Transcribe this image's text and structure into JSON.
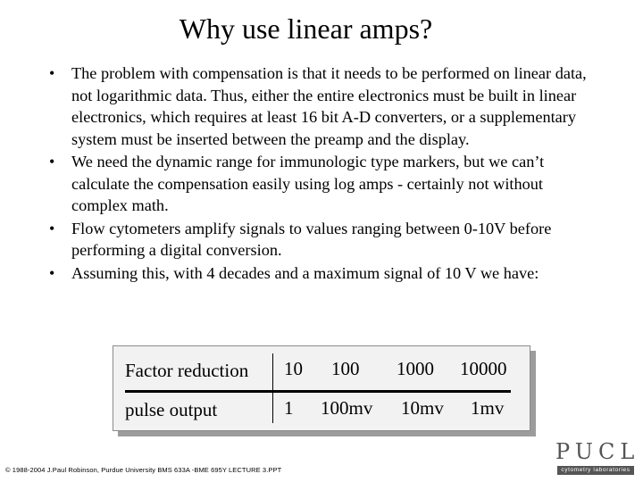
{
  "slide": {
    "title": "Why use linear amps?",
    "bullets": [
      "The problem with compensation is that it needs to be performed on linear data, not logarithmic data. Thus, either the entire electronics must be built in linear electronics, which requires at least 16 bit A-D converters, or a supplementary system must be inserted between the preamp and the display.",
      "We need the dynamic range for immunologic type markers, but we can’t calculate the compensation easily using log amps - certainly not without complex math.",
      "Flow cytometers amplify signals to values ranging between 0-10V before performing a digital conversion.",
      "Assuming this, with 4 decades and a maximum signal of 10 V we have:"
    ],
    "bullet_glyph": "•"
  },
  "table": {
    "rows": [
      {
        "label": "Factor reduction",
        "values": [
          "10",
          "100",
          "1000",
          "10000"
        ]
      },
      {
        "label": "pulse output",
        "values": [
          "1",
          "100mv",
          "10mv",
          "1mv"
        ]
      }
    ]
  },
  "footer": {
    "text": "© 1988-2004 J.Paul Robinson, Purdue University BMS 633A -BME 695Y LECTURE 3.PPT"
  },
  "logo": {
    "letters": "PUCL",
    "tagline": "cytometry laboratories"
  }
}
